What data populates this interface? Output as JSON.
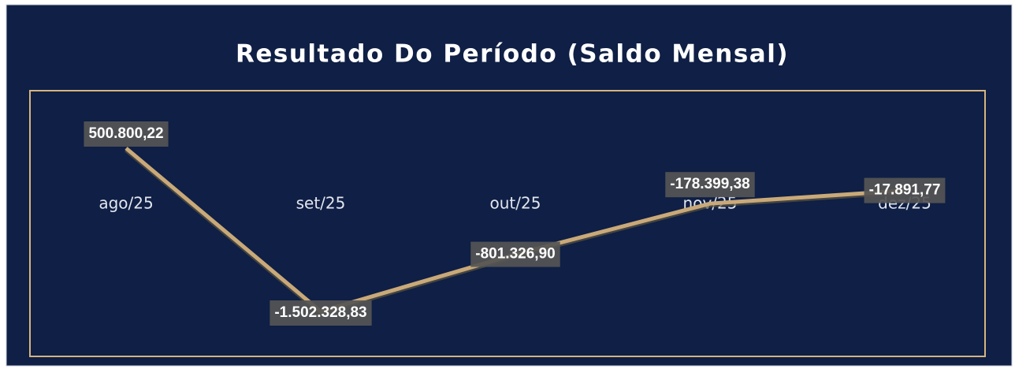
{
  "chart_data": {
    "type": "line",
    "title": "Resultado Do Período (Saldo Mensal)",
    "categories": [
      "ago/25",
      "set/25",
      "out/25",
      "nov/25",
      "dez/25"
    ],
    "values": [
      500800.22,
      -1502328.83,
      -801326.9,
      -178399.38,
      -17891.77
    ],
    "value_labels": [
      "500.800,22",
      "-1.502.328,83",
      "-801.326,90",
      "-178.399,38",
      "-17.891,77"
    ],
    "color": "#c9a979"
  }
}
